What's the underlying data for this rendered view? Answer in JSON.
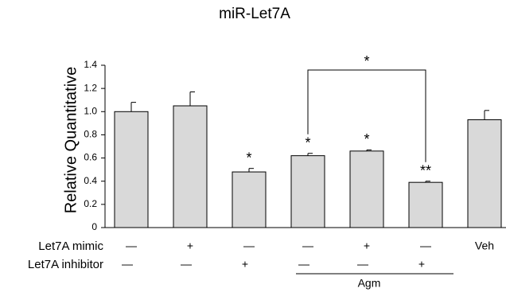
{
  "chart_data": {
    "type": "bar",
    "title": "miR-Let7A",
    "y_label": "Relative Quantitative",
    "values": [
      1.0,
      1.05,
      0.48,
      0.62,
      0.66,
      0.39,
      0.93
    ],
    "errors": [
      0.08,
      0.12,
      0.03,
      0.02,
      0.01,
      0.01,
      0.08
    ],
    "significance": [
      null,
      null,
      "*",
      "*",
      "*",
      "**",
      null
    ],
    "bracket_label": "*",
    "color": "#d9d9d9",
    "ylim": [
      0,
      1.4
    ],
    "yticks": [
      0,
      0.2,
      0.4,
      0.6,
      0.8,
      {
        "value": 1,
        "label": "1.0"
      },
      1.2,
      1.4
    ],
    "conditions": [
      {
        "label": "Let7A mimic",
        "values": [
          "—",
          "+",
          "—",
          "—",
          "+",
          "—",
          "Veh"
        ]
      },
      {
        "label": "Let7A inhibitor",
        "values": [
          "—",
          "—",
          "+",
          "—",
          "—",
          "+",
          null
        ]
      }
    ],
    "group_label": "Agm"
  }
}
